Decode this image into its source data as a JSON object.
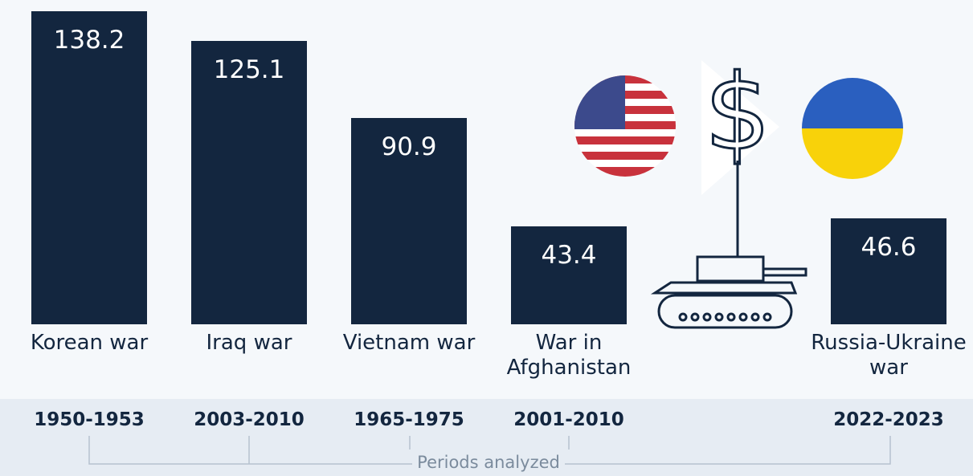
{
  "chart_data": {
    "type": "bar",
    "categories": [
      "Korean war",
      "Iraq war",
      "Vietnam war",
      "War in Afghanistan",
      "Russia-Ukraine war"
    ],
    "values": [
      138.2,
      125.1,
      90.9,
      43.4,
      46.6
    ],
    "color": "#13263f",
    "periods": [
      "1950-1953",
      "2003-2010",
      "1965-1975",
      "2001-2010",
      "2022-2023"
    ],
    "periods_label": "Periods analyzed"
  }
}
